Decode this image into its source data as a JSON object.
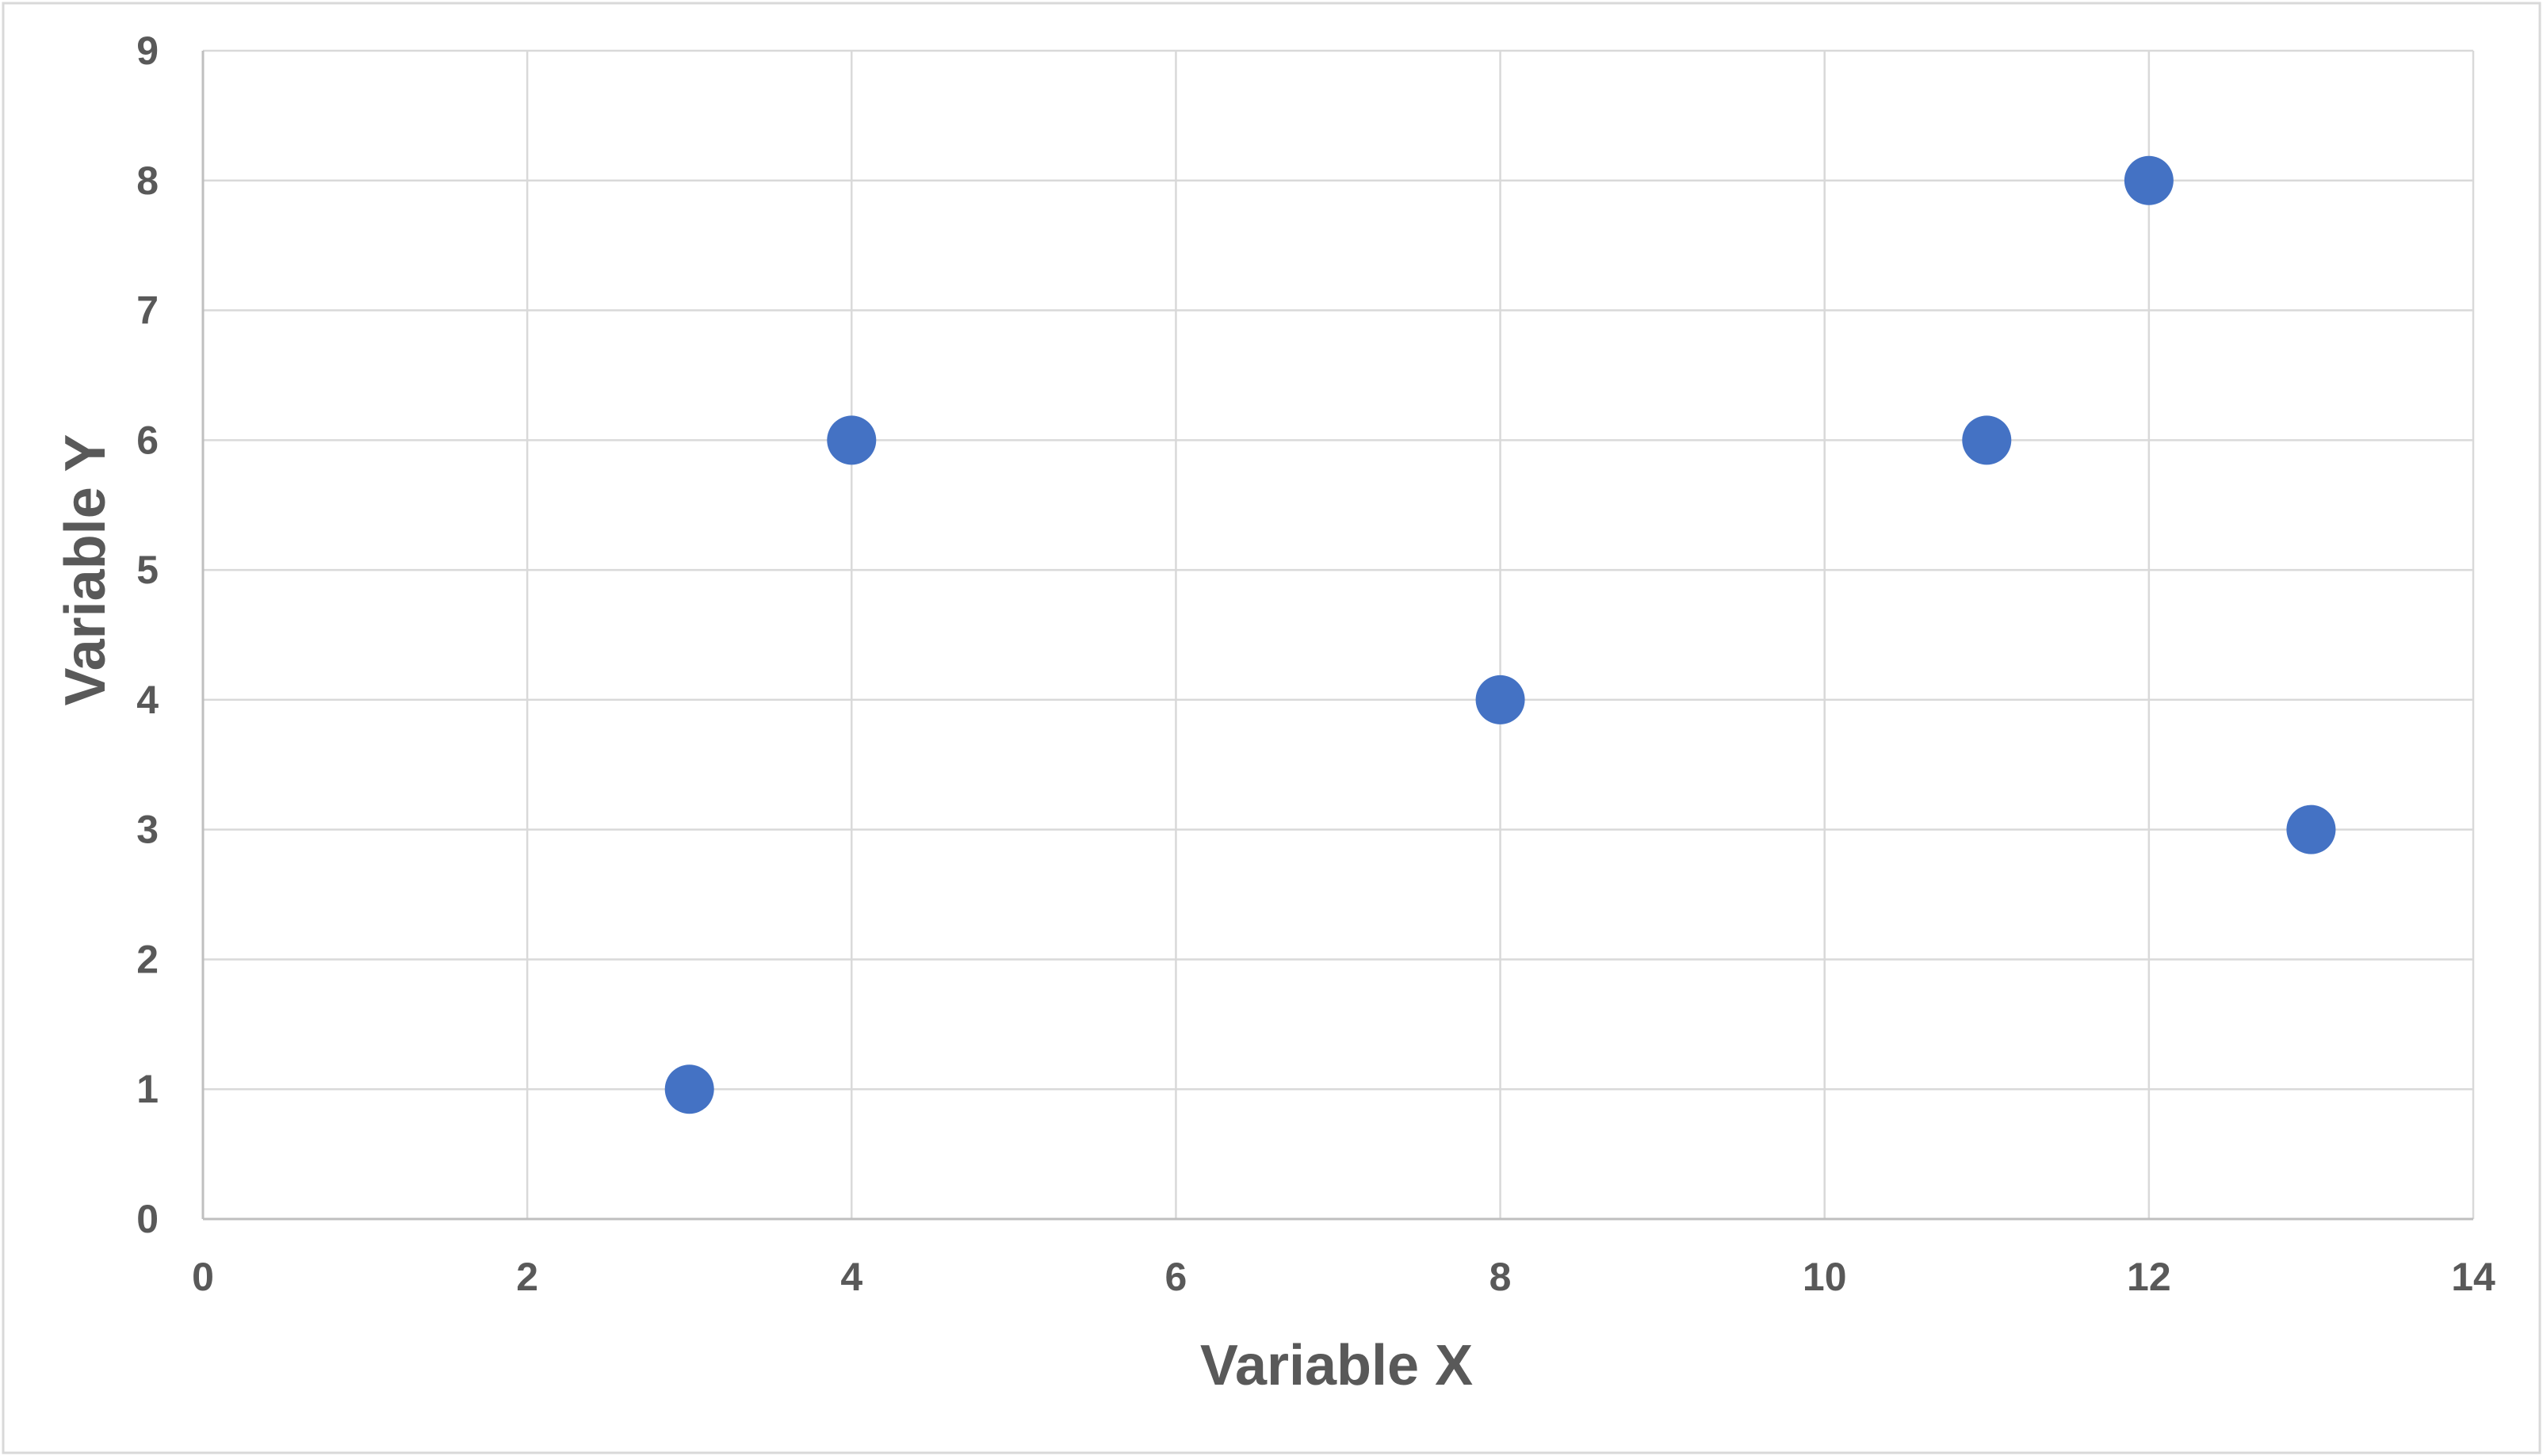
{
  "chart_data": {
    "type": "scatter",
    "title": "",
    "xlabel": "Variable X",
    "ylabel": "Variable Y",
    "xlim": [
      0,
      14
    ],
    "ylim": [
      0,
      9
    ],
    "x_ticks": [
      0,
      2,
      4,
      6,
      8,
      10,
      12,
      14
    ],
    "y_ticks": [
      0,
      1,
      2,
      3,
      4,
      5,
      6,
      7,
      8,
      9
    ],
    "grid": true,
    "legend": "none",
    "marker_color": "#4472C4",
    "grid_color": "#D9D9D9",
    "axis_color": "#BFBFBF",
    "text_color": "#595959",
    "series": [
      {
        "points": [
          {
            "x": 3,
            "y": 1
          },
          {
            "x": 4,
            "y": 6
          },
          {
            "x": 8,
            "y": 4
          },
          {
            "x": 11,
            "y": 6
          },
          {
            "x": 12,
            "y": 8
          },
          {
            "x": 13,
            "y": 3
          }
        ]
      }
    ]
  }
}
